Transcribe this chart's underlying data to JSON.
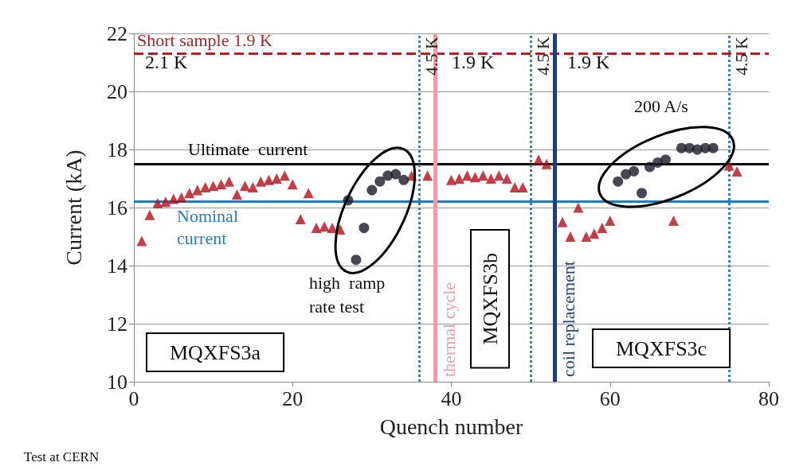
{
  "chart_data": {
    "type": "scatter",
    "xlabel": "Quench number",
    "ylabel": "Current (kA)",
    "xlim": [
      0,
      80
    ],
    "xticks": [
      0,
      20,
      40,
      60,
      80
    ],
    "ylim": [
      10,
      22
    ],
    "yticks": [
      10,
      12,
      14,
      16,
      18,
      20,
      22
    ],
    "grid": "y",
    "series": [
      {
        "color": "#b0101c",
        "marker": "triangle",
        "x": [
          1,
          2,
          3,
          4,
          5,
          6,
          7,
          8,
          9,
          10,
          11,
          12,
          13,
          14,
          15,
          16,
          17,
          18,
          19,
          20,
          21,
          22,
          23,
          24,
          25,
          26,
          35,
          37,
          40,
          41,
          42,
          43,
          44,
          45,
          46,
          47,
          48,
          49,
          51,
          52,
          54,
          55,
          56,
          57,
          58,
          59,
          60,
          68,
          75,
          76
        ],
        "values": [
          14.85,
          15.75,
          16.15,
          16.2,
          16.3,
          16.35,
          16.5,
          16.6,
          16.7,
          16.75,
          16.8,
          16.9,
          16.45,
          16.75,
          16.7,
          16.9,
          16.95,
          17.0,
          17.1,
          16.8,
          15.6,
          16.5,
          15.3,
          15.35,
          15.3,
          15.25,
          17.1,
          17.1,
          16.95,
          17.0,
          17.1,
          17.05,
          17.1,
          17.0,
          17.1,
          17.0,
          16.7,
          16.7,
          17.65,
          17.5,
          15.5,
          15.0,
          16.0,
          15.0,
          15.1,
          15.3,
          15.55,
          15.55,
          17.45,
          17.25
        ]
      },
      {
        "color": "#1a1a2a",
        "marker": "circle",
        "x": [
          27,
          28,
          29,
          30,
          31,
          32,
          33,
          34,
          61,
          62,
          63,
          64,
          65,
          66,
          67,
          69,
          70,
          71,
          72,
          73
        ],
        "values": [
          16.25,
          14.2,
          15.3,
          16.6,
          16.9,
          17.1,
          17.15,
          16.95,
          16.9,
          17.15,
          17.25,
          16.5,
          17.4,
          17.55,
          17.65,
          18.05,
          18.05,
          18.0,
          18.05,
          18.05
        ]
      }
    ],
    "ref_lines": [
      {
        "axis": "y",
        "value": 21.3,
        "label": "Short sample 1.9 K",
        "color": "#a0282d",
        "line_style": "dashed"
      },
      {
        "axis": "y",
        "value": 17.5,
        "label": "Ultimate  current",
        "color": "#000000",
        "line_style": "solid"
      },
      {
        "axis": "y",
        "value": 16.2,
        "label": "Nominal current",
        "color": "#2a7ab8",
        "line_style": "solid"
      },
      {
        "axis": "x",
        "value": 36,
        "label": "4.5 K",
        "color": "#3a7cc0",
        "line_style": "dotted"
      },
      {
        "axis": "x",
        "value": 38,
        "label": "thermal cycle",
        "color": "#e8a0a4",
        "line_style": "solid"
      },
      {
        "axis": "x",
        "value": 50,
        "label": "4.5 K",
        "color": "#3a7cc0",
        "line_style": "dotted"
      },
      {
        "axis": "x",
        "value": 53,
        "label": "coil replacement",
        "color": "#1f3f7a",
        "line_style": "solid"
      },
      {
        "axis": "x",
        "value": 75,
        "label": "4.5 K",
        "color": "#3a7cc0",
        "line_style": "dotted"
      }
    ],
    "annotations": [
      "2.1 K",
      "1.9 K",
      "1.9 K",
      "high  ramp rate test",
      "200 A/s",
      "MQXFS3a",
      "MQXFS3b",
      "MQXFS3c",
      "Test at CERN"
    ]
  }
}
